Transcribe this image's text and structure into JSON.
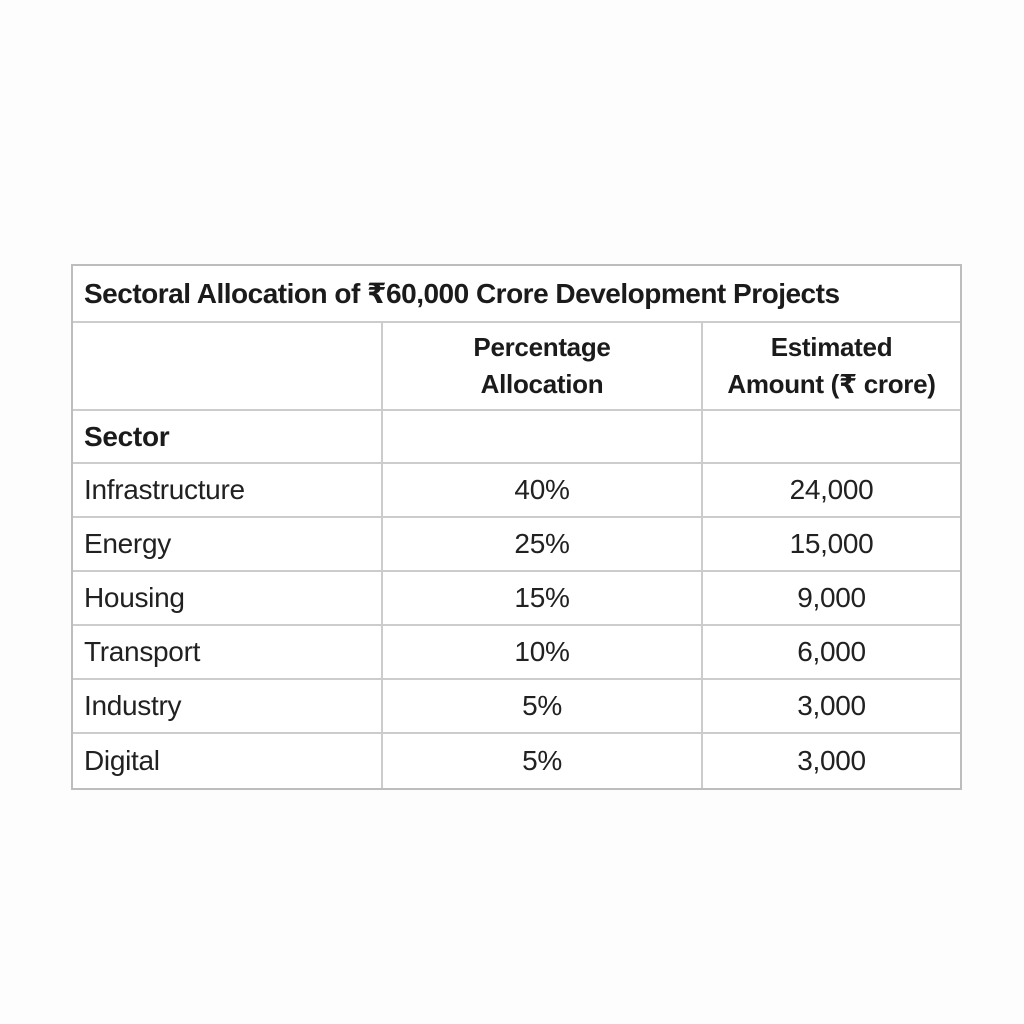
{
  "page": {
    "background_color": "#fdfdfd"
  },
  "table": {
    "title": "Sectoral Allocation of ₹60,000 Crore Development Projects",
    "columns": [
      {
        "label": "Sector",
        "lines": [
          "Sector"
        ]
      },
      {
        "label": "Percentage Allocation",
        "lines": [
          "Percentage",
          "Allocation"
        ]
      },
      {
        "label": "Estimated Amount (₹ crore)",
        "lines": [
          "Estimated",
          "Amount (₹ crore)"
        ]
      }
    ],
    "rows": [
      {
        "sector": "Infrastructure",
        "percentage": "40%",
        "amount": "24,000"
      },
      {
        "sector": "Energy",
        "percentage": "25%",
        "amount": "15,000"
      },
      {
        "sector": "Housing",
        "percentage": "15%",
        "amount": "9,000"
      },
      {
        "sector": "Transport",
        "percentage": "10%",
        "amount": "6,000"
      },
      {
        "sector": "Industry",
        "percentage": "5%",
        "amount": "3,000"
      },
      {
        "sector": "Digital",
        "percentage": "5%",
        "amount": "3,000"
      }
    ],
    "colors": {
      "text": "#1d1d1d",
      "grid_border": "#cccccc",
      "outer_border": "#bdbdbd",
      "cell_background": "#ffffff"
    }
  },
  "chart_data": {
    "type": "table",
    "title": "Sectoral Allocation of ₹60,000 Crore Development Projects",
    "columns": [
      "Sector",
      "Percentage Allocation",
      "Estimated Amount (₹ crore)"
    ],
    "rows": [
      [
        "Infrastructure",
        "40%",
        24000
      ],
      [
        "Energy",
        "25%",
        15000
      ],
      [
        "Housing",
        "15%",
        9000
      ],
      [
        "Transport",
        "10%",
        6000
      ],
      [
        "Industry",
        "5%",
        3000
      ],
      [
        "Digital",
        "5%",
        3000
      ]
    ],
    "total_amount_crore": 60000
  }
}
